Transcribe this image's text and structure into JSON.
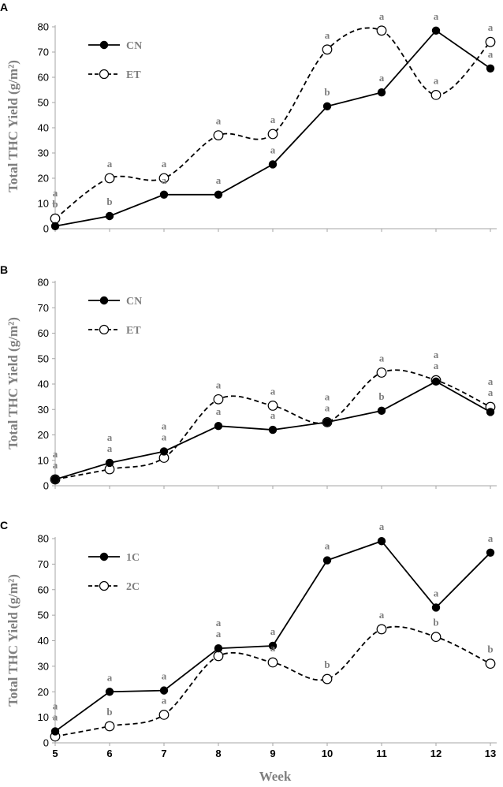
{
  "chart_data": [
    {
      "type": "line",
      "panel_label": "A",
      "x": [
        5,
        6,
        7,
        8,
        9,
        10,
        11,
        12,
        13
      ],
      "series": [
        {
          "name": "CN",
          "values": [
            1,
            5,
            13.5,
            13.5,
            25.5,
            48.5,
            54,
            78.5,
            63.5
          ],
          "letters": [
            "b",
            "b",
            "a",
            "a",
            "a",
            "b",
            "a",
            "a",
            "a"
          ],
          "style": "solid",
          "marker": "filled"
        },
        {
          "name": "ET",
          "values": [
            4,
            20,
            20,
            37,
            37.5,
            71,
            78.5,
            53,
            74
          ],
          "letters": [
            "a",
            "a",
            "a",
            "a",
            "a",
            "a",
            "a",
            "a",
            "a"
          ],
          "style": "dashed",
          "marker": "open"
        }
      ],
      "ylabel": "Total THC Yield (g/m²)",
      "ylim": [
        0,
        80
      ],
      "yticks": [
        "0",
        "10",
        "20",
        "30",
        "40",
        "50",
        "60",
        "70",
        "80"
      ],
      "legend": "top-left"
    },
    {
      "type": "line",
      "panel_label": "B",
      "x": [
        5,
        6,
        7,
        8,
        9,
        10,
        11,
        12,
        13
      ],
      "series": [
        {
          "name": "CN",
          "values": [
            2.5,
            9,
            13.5,
            23.5,
            22,
            25,
            29.5,
            41,
            29
          ],
          "letters": [
            "a",
            "a",
            "a",
            "a",
            "a",
            "a",
            "b",
            "a",
            "a"
          ],
          "style": "solid",
          "marker": "filled"
        },
        {
          "name": "ET",
          "values": [
            2.5,
            6.5,
            11,
            34,
            31.5,
            25,
            44.5,
            41.5,
            31
          ],
          "letters": [
            "a",
            "a",
            "a",
            "a",
            "a",
            "a",
            "a",
            "a",
            "a"
          ],
          "style": "dashed",
          "marker": "open"
        }
      ],
      "ylabel": "Total THC Yield (g/m²)",
      "ylim": [
        0,
        80
      ],
      "yticks": [
        "0",
        "10",
        "20",
        "30",
        "40",
        "50",
        "60",
        "70",
        "80"
      ],
      "legend": "top-left"
    },
    {
      "type": "line",
      "panel_label": "C",
      "x": [
        5,
        6,
        7,
        8,
        9,
        10,
        11,
        12,
        13
      ],
      "series": [
        {
          "name": "1C",
          "values": [
            4.5,
            20,
            20.5,
            37,
            38,
            71.5,
            79,
            53,
            74.5
          ],
          "letters": [
            "a",
            "a",
            "a",
            "a",
            "a",
            "a",
            "a",
            "a",
            "a"
          ],
          "style": "solid",
          "marker": "filled"
        },
        {
          "name": "2C",
          "values": [
            2.5,
            6.5,
            11,
            34,
            31.5,
            25,
            44.5,
            41.5,
            31
          ],
          "letters": [
            "a",
            "b",
            "a",
            "a",
            "a",
            "b",
            "a",
            "b",
            "b"
          ],
          "style": "dashed",
          "marker": "open"
        }
      ],
      "ylabel": "Total THC Yield (g/m²)",
      "xlabel": "Week",
      "ylim": [
        0,
        80
      ],
      "yticks": [
        "0",
        "10",
        "20",
        "30",
        "40",
        "50",
        "60",
        "70",
        "80"
      ],
      "xticks": [
        "5",
        "6",
        "7",
        "8",
        "9",
        "10",
        "11",
        "12",
        "13"
      ],
      "legend": "top-left"
    }
  ]
}
